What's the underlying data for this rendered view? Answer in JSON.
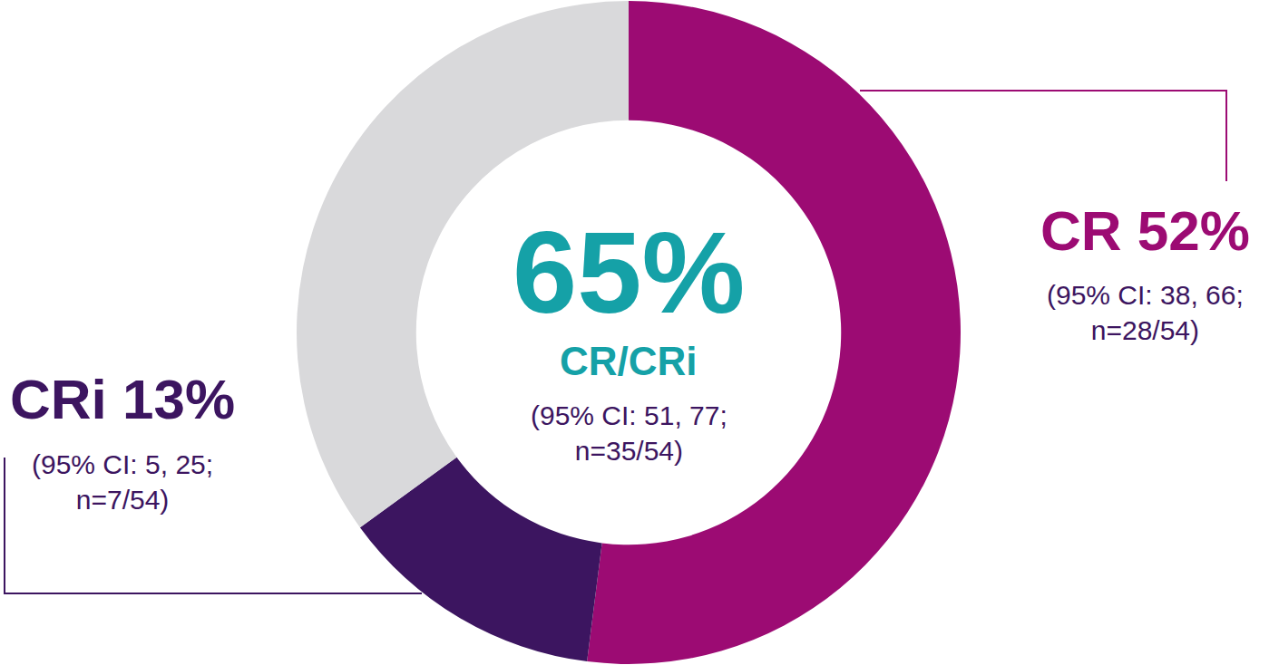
{
  "chart_data": {
    "type": "donut",
    "categories": [
      "CR",
      "CRi",
      null
    ],
    "values": [
      52,
      13,
      35
    ],
    "value_labels": [
      "52%",
      "13%",
      null
    ],
    "notes": [
      "(95% CI: 38, 66; n=28/54)",
      "(95% CI: 5, 25; n=7/54)",
      null
    ],
    "colors": [
      "#9c0b73",
      "#3c1560",
      "#d9d9db"
    ],
    "data_labels": true,
    "center_label": {
      "value": 65,
      "value_label": "65%",
      "text": "CR/CRi",
      "note": "(95% CI: 51, 77; n=35/54)",
      "color": "#15a1a7"
    }
  }
}
